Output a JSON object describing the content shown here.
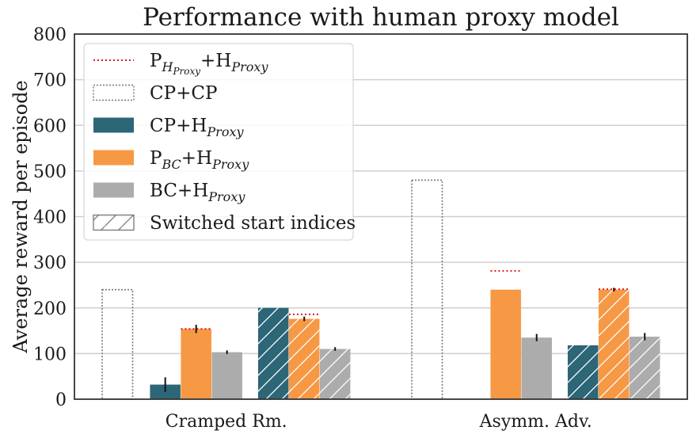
{
  "chart_data": {
    "type": "bar",
    "title": "Performance with human proxy model",
    "ylabel": "Average reward per episode",
    "xlabel": "",
    "ylim": [
      0,
      800
    ],
    "yticks": [
      "0",
      "100",
      "200",
      "300",
      "400",
      "500",
      "600",
      "700",
      "800"
    ],
    "grid": true,
    "legend_position": "top-left",
    "categories": [
      "Cramped Rm.",
      "Asymm. Adv."
    ],
    "colors": {
      "cp_hproxy": "#2c6677",
      "pbc_hproxy": "#f79845",
      "bc_hproxy": "#acacac",
      "cp_cp_outline": "#777777",
      "p_hproxy_line": "#e31a1c"
    },
    "legend": [
      {
        "key": "p_hproxy",
        "label": "P_{H_Proxy}+H_{Proxy}",
        "base": "P",
        "sub": "H",
        "subsub": "Proxy",
        "tail": "+H",
        "tailsub": "Proxy",
        "style": "dotted-red-line"
      },
      {
        "key": "cp_cp",
        "label": "CP+CP",
        "base": "CP+CP",
        "style": "dotted-outline"
      },
      {
        "key": "cp_hproxy",
        "label": "CP+H_Proxy",
        "base": "CP+H",
        "sub": "Proxy",
        "style": "fill"
      },
      {
        "key": "pbc_hproxy",
        "label": "P_BC+H_Proxy",
        "base": "P",
        "sub": "BC",
        "tail": "+H",
        "tailsub": "Proxy",
        "style": "fill"
      },
      {
        "key": "bc_hproxy",
        "label": "BC+H_Proxy",
        "base": "BC+H",
        "sub": "Proxy",
        "style": "fill"
      },
      {
        "key": "switched",
        "label": "Switched start indices",
        "base": "Switched start indices",
        "style": "hatch"
      }
    ],
    "series": [
      {
        "name": "CP+CP",
        "values": [
          240,
          480
        ]
      },
      {
        "name": "CP+HProxy",
        "values": [
          32,
          null
        ],
        "errors": [
          16,
          null
        ]
      },
      {
        "name": "PBC+HProxy",
        "values": [
          154,
          240
        ],
        "errors": [
          9,
          null
        ]
      },
      {
        "name": "BC+HProxy",
        "values": [
          103,
          135
        ],
        "errors": [
          4,
          8
        ]
      },
      {
        "name": "CP+HProxy (Switched start indices)",
        "values": [
          200,
          118
        ],
        "errors": [
          null,
          null
        ]
      },
      {
        "name": "PBC+HProxy (Switched start indices)",
        "values": [
          176,
          240
        ],
        "errors": [
          5,
          4
        ]
      },
      {
        "name": "BC+HProxy (Switched start indices)",
        "values": [
          110,
          137
        ],
        "errors": [
          4,
          8
        ]
      },
      {
        "name": "PHProxy+HProxy",
        "values": [
          154,
          281
        ]
      },
      {
        "name": "PHProxy+HProxy (Switched start indices)",
        "values": [
          186,
          241
        ]
      }
    ]
  }
}
